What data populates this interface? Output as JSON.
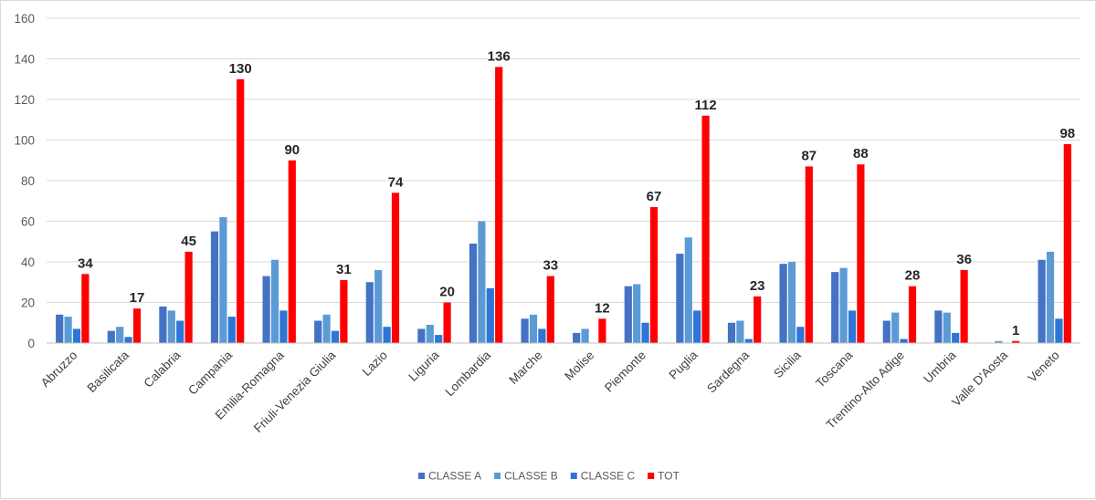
{
  "chart_data": {
    "type": "bar",
    "categories": [
      "Abruzzo",
      "Basilicata",
      "Calabria",
      "Campania",
      "Emilia-Romagna",
      "Friuli-Venezia Giulia",
      "Lazio",
      "Liguria",
      "Lombardia",
      "Marche",
      "Molise",
      "Piemonte",
      "Puglia",
      "Sardegna",
      "Sicilia",
      "Toscana",
      "Trentino-Alto Adige",
      "Umbria",
      "Valle D'Aosta",
      "Veneto"
    ],
    "series": [
      {
        "name": "CLASSE A",
        "color": "#4472c4",
        "values": [
          14,
          6,
          18,
          55,
          33,
          11,
          30,
          7,
          49,
          12,
          5,
          28,
          44,
          10,
          39,
          35,
          11,
          16,
          0,
          41
        ]
      },
      {
        "name": "CLASSE B",
        "color": "#5b9bd5",
        "values": [
          13,
          8,
          16,
          62,
          41,
          14,
          36,
          9,
          60,
          14,
          7,
          29,
          52,
          11,
          40,
          37,
          15,
          15,
          1,
          45
        ]
      },
      {
        "name": "CLASSE C",
        "color": "#2e75d6",
        "values": [
          7,
          3,
          11,
          13,
          16,
          6,
          8,
          4,
          27,
          7,
          0,
          10,
          16,
          2,
          8,
          16,
          2,
          5,
          0,
          12
        ]
      },
      {
        "name": "TOT",
        "color": "#ff0000",
        "values": [
          34,
          17,
          45,
          130,
          90,
          31,
          74,
          20,
          136,
          33,
          12,
          67,
          112,
          23,
          87,
          88,
          28,
          36,
          1,
          98
        ],
        "labels": [
          "34",
          "17",
          "45",
          "130",
          "90",
          "31",
          "74",
          "20",
          "136",
          "33",
          "12",
          "67",
          "112",
          "23",
          "87",
          "88",
          "28",
          "36",
          "1",
          "98"
        ]
      }
    ],
    "ylim": [
      0,
      160
    ],
    "yticks": [
      "0",
      "20",
      "40",
      "60",
      "80",
      "100",
      "120",
      "140",
      "160"
    ],
    "grid": "horizontal",
    "legend": "bottom",
    "title": "",
    "xlabel": "",
    "ylabel": ""
  }
}
